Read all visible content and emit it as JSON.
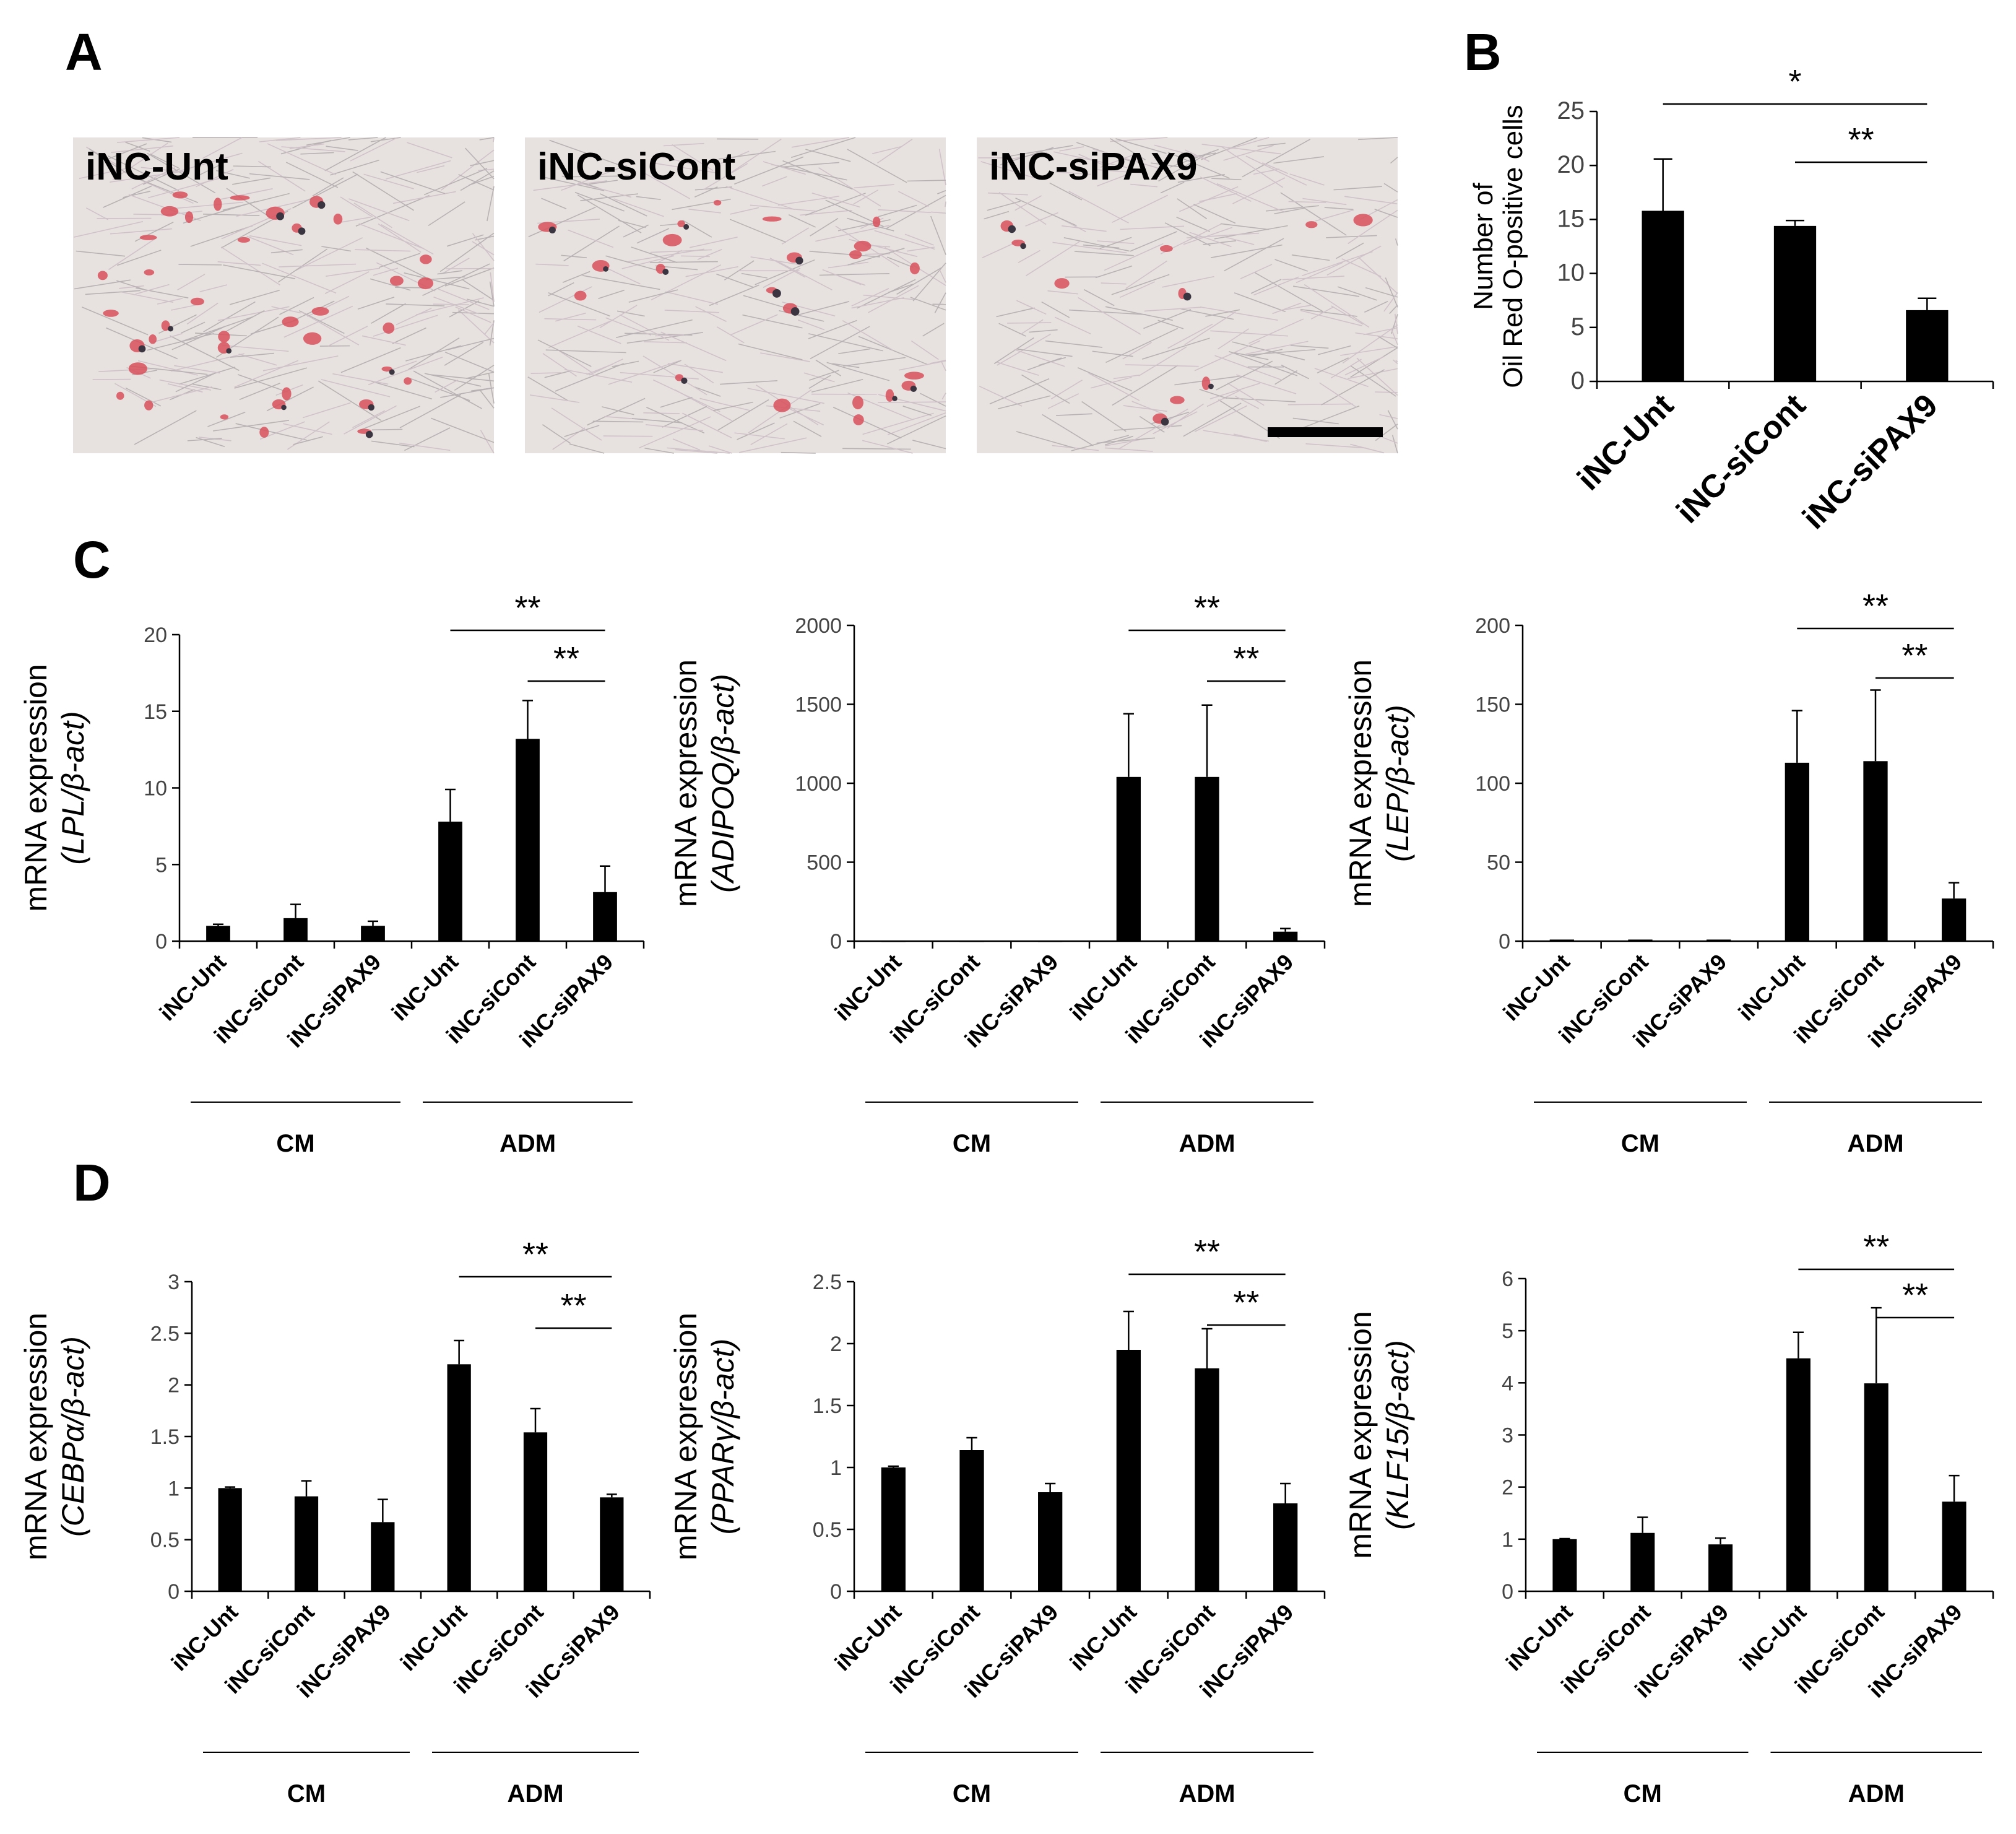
{
  "panels": {
    "A": "A",
    "B": "B",
    "C": "C",
    "D": "D"
  },
  "panel_a": {
    "images": [
      {
        "label": "iNC-Unt",
        "stain": "#d8505c"
      },
      {
        "label": "iNC-siCont",
        "stain": "#d8505c"
      },
      {
        "label": "iNC-siPAX9",
        "stain": "#d8505c"
      }
    ],
    "scale_bar": "present"
  },
  "chart_data": [
    {
      "id": "B",
      "type": "bar",
      "categories": [
        "iNC-Unt",
        "iNC-siCont",
        "iNC-siPAX9"
      ],
      "values": [
        15.8,
        14.4,
        6.6
      ],
      "errors": [
        4.8,
        0.5,
        1.1
      ],
      "ylabel": [
        "Number of",
        "Oil Red O-positive cells"
      ],
      "ylim": [
        0,
        25
      ],
      "yticks": [
        0,
        5,
        10,
        15,
        20,
        25
      ],
      "significance": [
        {
          "from": 0,
          "to": 2,
          "label": "*"
        },
        {
          "from": 1,
          "to": 2,
          "label": "**"
        }
      ]
    },
    {
      "id": "C-LPL",
      "type": "bar",
      "categories": [
        "iNC-Unt",
        "iNC-siCont",
        "iNC-siPAX9",
        "iNC-Unt",
        "iNC-siCont",
        "iNC-siPAX9"
      ],
      "groups": [
        {
          "label": "CM",
          "from": 0,
          "to": 2
        },
        {
          "label": "ADM",
          "from": 3,
          "to": 5
        }
      ],
      "values": [
        1.0,
        1.5,
        1.0,
        7.8,
        13.2,
        3.2
      ],
      "errors": [
        0.1,
        0.9,
        0.3,
        2.1,
        2.5,
        1.7
      ],
      "ylabel": "mRNA expression",
      "ylabel_gene": "(LPL/β-act)",
      "ylim": [
        0,
        20
      ],
      "yticks": [
        0,
        5,
        10,
        15,
        20
      ],
      "significance": [
        {
          "from": 3,
          "to": 5,
          "label": "**"
        },
        {
          "from": 4,
          "to": 5,
          "label": "**"
        }
      ]
    },
    {
      "id": "C-ADIPOQ",
      "type": "bar",
      "categories": [
        "iNC-Unt",
        "iNC-siCont",
        "iNC-siPAX9",
        "iNC-Unt",
        "iNC-siCont",
        "iNC-siPAX9"
      ],
      "groups": [
        {
          "label": "CM",
          "from": 0,
          "to": 2
        },
        {
          "label": "ADM",
          "from": 3,
          "to": 5
        }
      ],
      "values": [
        1,
        1,
        1,
        1040,
        1040,
        60
      ],
      "errors": [
        0,
        0,
        0,
        400,
        455,
        20
      ],
      "ylabel": "mRNA expression",
      "ylabel_gene": "(ADIPOQ/β-act)",
      "ylim": [
        0,
        2000
      ],
      "yticks": [
        0,
        500,
        1000,
        1500,
        2000
      ],
      "significance": [
        {
          "from": 3,
          "to": 5,
          "label": "**"
        },
        {
          "from": 4,
          "to": 5,
          "label": "**"
        }
      ]
    },
    {
      "id": "C-LEP",
      "type": "bar",
      "categories": [
        "iNC-Unt",
        "iNC-siCont",
        "iNC-siPAX9",
        "iNC-Unt",
        "iNC-siCont",
        "iNC-siPAX9"
      ],
      "groups": [
        {
          "label": "CM",
          "from": 0,
          "to": 2
        },
        {
          "label": "ADM",
          "from": 3,
          "to": 5
        }
      ],
      "values": [
        1,
        1,
        1,
        113,
        114,
        27
      ],
      "errors": [
        0,
        0,
        0,
        33,
        45,
        10
      ],
      "ylabel": "mRNA expression",
      "ylabel_gene": "(LEP/β-act)",
      "ylim": [
        0,
        200
      ],
      "yticks": [
        0,
        50,
        100,
        150,
        200
      ],
      "significance": [
        {
          "from": 3,
          "to": 5,
          "label": "**"
        },
        {
          "from": 4,
          "to": 5,
          "label": "**"
        }
      ]
    },
    {
      "id": "D-CEBPA",
      "type": "bar",
      "categories": [
        "iNC-Unt",
        "iNC-siCont",
        "iNC-siPAX9",
        "iNC-Unt",
        "iNC-siCont",
        "iNC-siPAX9"
      ],
      "groups": [
        {
          "label": "CM",
          "from": 0,
          "to": 2
        },
        {
          "label": "ADM",
          "from": 3,
          "to": 5
        }
      ],
      "values": [
        1.0,
        0.92,
        0.67,
        2.2,
        1.54,
        0.91
      ],
      "errors": [
        0.01,
        0.15,
        0.22,
        0.23,
        0.23,
        0.03
      ],
      "ylabel": "mRNA expression",
      "ylabel_gene": "(CEBPα/β-act)",
      "ylim": [
        0,
        3
      ],
      "yticks": [
        0,
        0.5,
        1,
        1.5,
        2,
        2.5,
        3
      ],
      "significance": [
        {
          "from": 3,
          "to": 5,
          "label": "**"
        },
        {
          "from": 4,
          "to": 5,
          "label": "**"
        }
      ]
    },
    {
      "id": "D-PPARG",
      "type": "bar",
      "categories": [
        "iNC-Unt",
        "iNC-siCont",
        "iNC-siPAX9",
        "iNC-Unt",
        "iNC-siCont",
        "iNC-siPAX9"
      ],
      "groups": [
        {
          "label": "CM",
          "from": 0,
          "to": 2
        },
        {
          "label": "ADM",
          "from": 3,
          "to": 5
        }
      ],
      "values": [
        1.0,
        1.14,
        0.8,
        1.95,
        1.8,
        0.71
      ],
      "errors": [
        0.01,
        0.1,
        0.07,
        0.31,
        0.32,
        0.16
      ],
      "ylabel": "mRNA expression",
      "ylabel_gene": "(PPARγ/β-act)",
      "ylim": [
        0,
        2.5
      ],
      "yticks": [
        0,
        0.5,
        1,
        1.5,
        2,
        2.5
      ],
      "significance": [
        {
          "from": 3,
          "to": 5,
          "label": "**"
        },
        {
          "from": 4,
          "to": 5,
          "label": "**"
        }
      ]
    },
    {
      "id": "D-KLF15",
      "type": "bar",
      "categories": [
        "iNC-Unt",
        "iNC-siCont",
        "iNC-siPAX9",
        "iNC-Unt",
        "iNC-siCont",
        "iNC-siPAX9"
      ],
      "groups": [
        {
          "label": "CM",
          "from": 0,
          "to": 2
        },
        {
          "label": "ADM",
          "from": 3,
          "to": 5
        }
      ],
      "values": [
        1.0,
        1.12,
        0.9,
        4.47,
        3.99,
        1.72
      ],
      "errors": [
        0.01,
        0.3,
        0.12,
        0.5,
        1.45,
        0.5
      ],
      "ylabel": "mRNA expression",
      "ylabel_gene": "(KLF15/β-act)",
      "ylim": [
        0,
        6
      ],
      "yticks": [
        0,
        1,
        2,
        3,
        4,
        5,
        6
      ],
      "significance": [
        {
          "from": 3,
          "to": 5,
          "label": "**"
        },
        {
          "from": 4,
          "to": 5,
          "label": "**"
        }
      ]
    }
  ]
}
